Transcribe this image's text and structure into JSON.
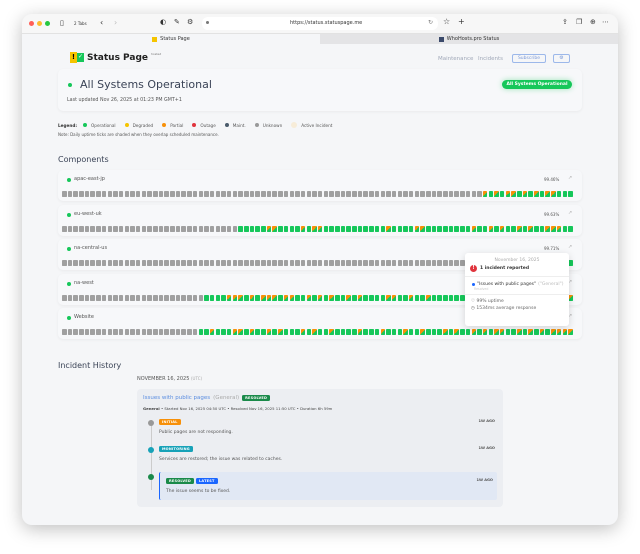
{
  "browser": {
    "tabs_count": "2 Tabs",
    "url": "https://status.statuspage.me",
    "tabs": [
      {
        "label": "Status Page"
      },
      {
        "label": "WhoHosts.pro Status"
      }
    ]
  },
  "header": {
    "logo_text": "Status Page",
    "logo_sup": "hosted",
    "nav": [
      "Maintenance",
      "Incidents"
    ],
    "subscribe": "Subscribe",
    "settings_icon": "gear-icon"
  },
  "status": {
    "title": "All Systems Operational",
    "updated": "Last updated Nov 26, 2025 at 01:23 PM GMT+1",
    "badge": "All Systems Operational"
  },
  "legend": {
    "label": "Legend:",
    "items": [
      {
        "label": "Operational",
        "color": "#16c75a"
      },
      {
        "label": "Degraded",
        "color": "#f5c400"
      },
      {
        "label": "Partial",
        "color": "#f79009"
      },
      {
        "label": "Outage",
        "color": "#e0343d"
      },
      {
        "label": "Maint.",
        "color": "#4a5b6b"
      },
      {
        "label": "Unknown",
        "color": "#999999"
      },
      {
        "label": "Active Incident",
        "color": "#f7ecd8"
      }
    ],
    "note": "Note: Daily uptime ticks are shaded when they overlap scheduled maintenance."
  },
  "components": {
    "heading": "Components",
    "items": [
      {
        "name": "apac-east-jp",
        "uptime": "99.46%",
        "days": "ggggggggggggggggggggggggggggggggggggggggggggggggggggggggggggggggggggggggggpopoppopopoppooo"
      },
      {
        "name": "eu-west-uk",
        "uptime": "99.63%",
        "days": "gggggggggggggggggggoooooppoooopoppooooooooooopooooppoooooooopoopopoopopoopppoo"
      },
      {
        "name": "na-central-us",
        "uptime": "99.71%",
        "days": "gggggggggggggggggggggggggggggggggggggggggggggggggggggggggggggggggggggggggggggggggggggoooo"
      },
      {
        "name": "na-west",
        "uptime": "",
        "days": "gggggggggggggggggggoooopppopopppoppoopopopoopopooooppoopoopoooooopoooopopoopoppopopp"
      },
      {
        "name": "Website",
        "uptime": "",
        "days": "ggggggggggggggggoopoooppopoopopooopopoopoooopooopooopoopooopopoopopoppoopopopopppp"
      }
    ]
  },
  "tooltip": {
    "date": "November 16, 2025",
    "summary": "1 incident reported",
    "incident": "\"Issues with public pages\"",
    "incident_group": "(\"General\")",
    "incident_state": "Resolved",
    "uptime": "99% uptime",
    "response": "1534ms average response"
  },
  "history": {
    "heading": "Incident History",
    "date": "NOVEMBER 16, 2025",
    "tz": "(UTC)",
    "incident": {
      "title": "Issues with public pages",
      "group": "(General)",
      "badge": "RESOLVED",
      "meta_group": "General",
      "meta": "• Started Nov 16, 2025 04:50 UTC • Resolved Nov 16, 2025 11:50 UTC • Duration 6h 59m",
      "updates": [
        {
          "badge": "INITIAL",
          "badge_color": "#f79009",
          "text": "Public pages are not responding.",
          "ago": "1W AGO"
        },
        {
          "badge": "MONITORING",
          "badge_color": "#17a2b8",
          "text": "Services are restored; the issue was related to caches.",
          "ago": "1W AGO"
        },
        {
          "badge": "RESOLVED",
          "badge_color": "#1a8a4a",
          "badge2": "LATEST",
          "text": "The issue seems to be fixed.",
          "ago": "1W AGO"
        }
      ]
    }
  }
}
